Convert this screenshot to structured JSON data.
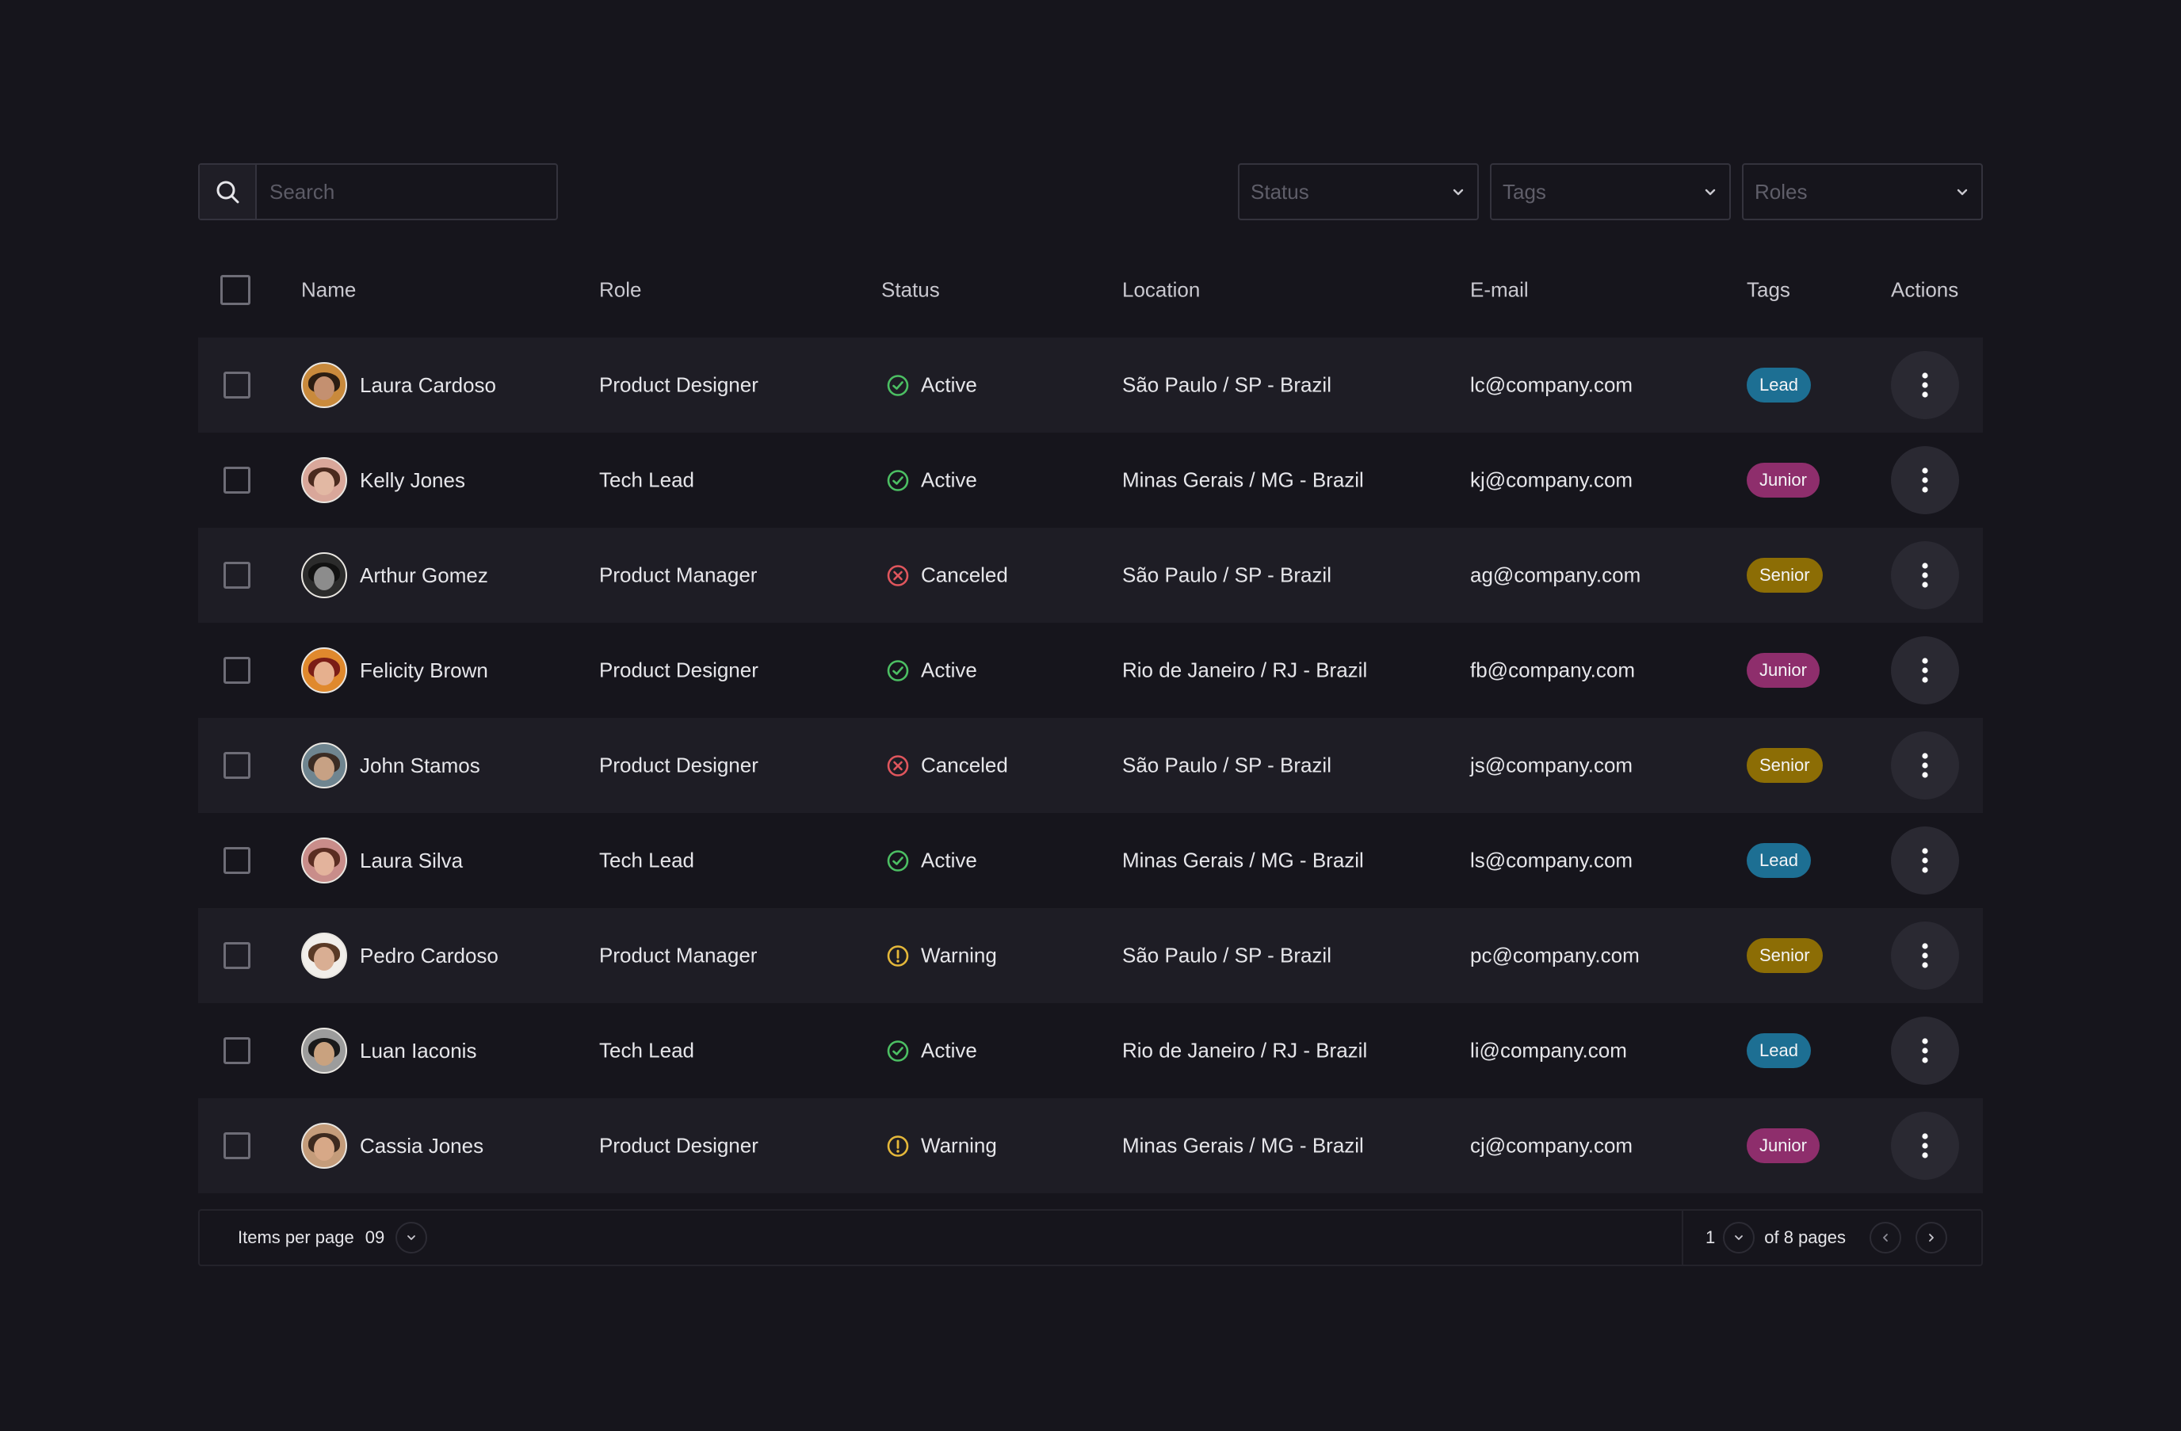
{
  "toolbar": {
    "search_placeholder": "Search",
    "filters": [
      {
        "label": "Status"
      },
      {
        "label": "Tags"
      },
      {
        "label": "Roles"
      }
    ]
  },
  "columns": {
    "name": "Name",
    "role": "Role",
    "status": "Status",
    "location": "Location",
    "email": "E-mail",
    "tags": "Tags",
    "actions": "Actions"
  },
  "rows": [
    {
      "name": "Laura Cardoso",
      "role": "Product Designer",
      "status": "Active",
      "location": "São Paulo / SP - Brazil",
      "email": "lc@company.com",
      "tag": "Lead"
    },
    {
      "name": "Kelly Jones",
      "role": "Tech Lead",
      "status": "Active",
      "location": "Minas Gerais / MG - Brazil",
      "email": "kj@company.com",
      "tag": "Junior"
    },
    {
      "name": "Arthur Gomez",
      "role": "Product Manager",
      "status": "Canceled",
      "location": "São Paulo / SP - Brazil",
      "email": "ag@company.com",
      "tag": "Senior"
    },
    {
      "name": "Felicity Brown",
      "role": "Product Designer",
      "status": "Active",
      "location": "Rio de Janeiro / RJ - Brazil",
      "email": "fb@company.com",
      "tag": "Junior"
    },
    {
      "name": "John Stamos",
      "role": "Product Designer",
      "status": "Canceled",
      "location": "São Paulo / SP - Brazil",
      "email": "js@company.com",
      "tag": "Senior"
    },
    {
      "name": "Laura Silva",
      "role": "Tech Lead",
      "status": "Active",
      "location": "Minas Gerais / MG - Brazil",
      "email": "ls@company.com",
      "tag": "Lead"
    },
    {
      "name": "Pedro Cardoso",
      "role": "Product Manager",
      "status": "Warning",
      "location": "São Paulo / SP - Brazil",
      "email": "pc@company.com",
      "tag": "Senior"
    },
    {
      "name": "Luan Iaconis",
      "role": "Tech Lead",
      "status": "Active",
      "location": "Rio de Janeiro / RJ - Brazil",
      "email": "li@company.com",
      "tag": "Lead"
    },
    {
      "name": "Cassia Jones",
      "role": "Product Designer",
      "status": "Warning",
      "location": "Minas Gerais / MG - Brazil",
      "email": "cj@company.com",
      "tag": "Junior"
    }
  ],
  "status_colors": {
    "Active": "#4cbf63",
    "Canceled": "#e0565d",
    "Warning": "#e5b83a"
  },
  "tag_colors": {
    "Lead": "#1d6f93",
    "Junior": "#8e2e6c",
    "Senior": "#8c6d05"
  },
  "footer": {
    "items_per_page_label": "Items per page",
    "items_per_page_value": "09",
    "current_page": "1",
    "pages_label": "of 8 pages"
  }
}
